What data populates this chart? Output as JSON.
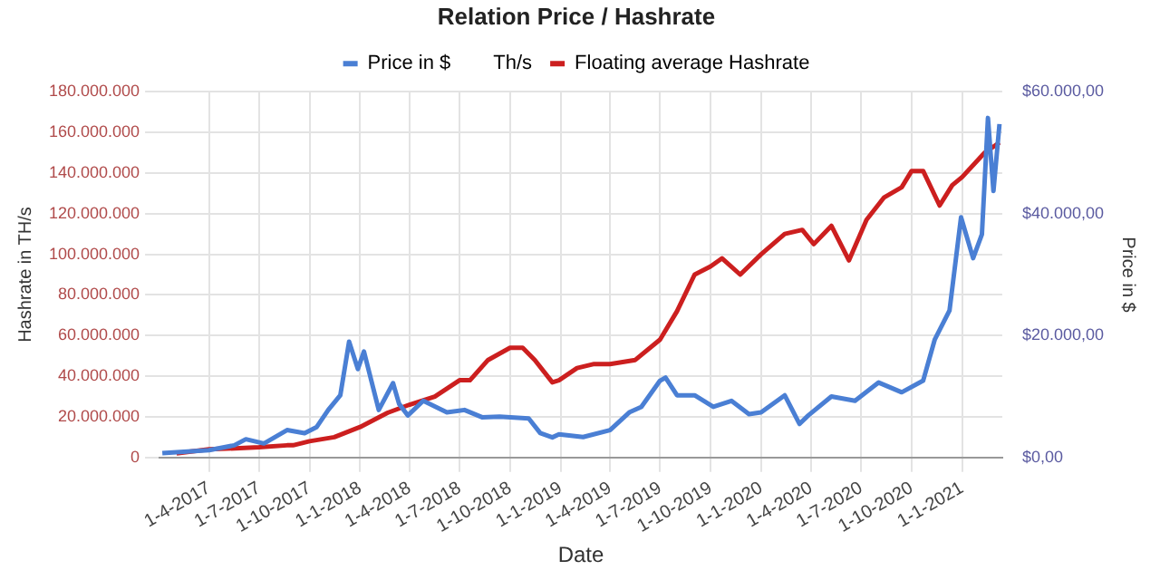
{
  "chart_data": {
    "type": "line",
    "title": "Relation Price / Hashrate",
    "xlabel": "Date",
    "ylabel": "Hashrate in TH/s",
    "y2label": "Price in $",
    "legend": "top",
    "grid": true,
    "marker": "none",
    "line_style": "solid",
    "xlim": [
      "2017-01-01",
      "2021-03-15"
    ],
    "xticks": [
      {
        "value": "2017-04-01",
        "label": "1-4-2017"
      },
      {
        "value": "2017-07-01",
        "label": "1-7-2017"
      },
      {
        "value": "2017-10-01",
        "label": "1-10-2017"
      },
      {
        "value": "2018-01-01",
        "label": "1-1-2018"
      },
      {
        "value": "2018-04-01",
        "label": "1-4-2018"
      },
      {
        "value": "2018-07-01",
        "label": "1-7-2018"
      },
      {
        "value": "2018-10-01",
        "label": "1-10-2018"
      },
      {
        "value": "2019-01-01",
        "label": "1-1-2019"
      },
      {
        "value": "2019-04-01",
        "label": "1-4-2019"
      },
      {
        "value": "2019-07-01",
        "label": "1-7-2019"
      },
      {
        "value": "2019-10-01",
        "label": "1-10-2019"
      },
      {
        "value": "2020-01-01",
        "label": "1-1-2020"
      },
      {
        "value": "2020-04-01",
        "label": "1-4-2020"
      },
      {
        "value": "2020-07-01",
        "label": "1-7-2020"
      },
      {
        "value": "2020-10-01",
        "label": "1-10-2020"
      },
      {
        "value": "2021-01-01",
        "label": "1-1-2021"
      }
    ],
    "ylim": [
      0,
      180000000
    ],
    "yticks": [
      0,
      {
        "value": 20000000,
        "label": "20.000.000"
      },
      {
        "value": 40000000,
        "label": "40.000.000"
      },
      {
        "value": 60000000,
        "label": "60.000.000"
      },
      {
        "value": 80000000,
        "label": "80.000.000"
      },
      {
        "value": 100000000,
        "label": "100.000.000"
      },
      {
        "value": 120000000,
        "label": "120.000.000"
      },
      {
        "value": 140000000,
        "label": "140.000.000"
      },
      {
        "value": 160000000,
        "label": "160.000.000"
      },
      {
        "value": 180000000,
        "label": "180.000.000"
      }
    ],
    "y2lim": [
      0,
      60000
    ],
    "y2ticks": [
      {
        "value": 0,
        "label": "$0,00"
      },
      {
        "value": 20000,
        "label": "$20.000,00"
      },
      {
        "value": 40000,
        "label": "$40.000,00"
      },
      {
        "value": 60000,
        "label": "$60.000,00"
      }
    ],
    "series": [
      {
        "name": "Price in $",
        "color": "#4a7fd4",
        "axis": "y2",
        "x": [
          "2017-01-06",
          "2017-04-01",
          "2017-05-17",
          "2017-06-07",
          "2017-07-10",
          "2017-08-21",
          "2017-09-22",
          "2017-10-14",
          "2017-11-04",
          "2017-11-26",
          "2017-12-12",
          "2017-12-28",
          "2018-01-08",
          "2018-02-04",
          "2018-03-02",
          "2018-03-13",
          "2018-03-29",
          "2018-04-26",
          "2018-06-08",
          "2018-07-10",
          "2018-08-11",
          "2018-09-12",
          "2018-11-04",
          "2018-11-25",
          "2018-12-17",
          "2018-12-29",
          "2019-02-11",
          "2019-04-01",
          "2019-05-06",
          "2019-05-28",
          "2019-07-01",
          "2019-07-11",
          "2019-08-01",
          "2019-09-02",
          "2019-10-06",
          "2019-11-08",
          "2019-12-10",
          "2020-01-01",
          "2020-02-13",
          "2020-03-11",
          "2020-03-27",
          "2020-05-08",
          "2020-06-20",
          "2020-08-02",
          "2020-09-13",
          "2020-10-22",
          "2020-11-12",
          "2020-12-09",
          "2020-12-30",
          "2021-01-21",
          "2021-02-06",
          "2021-02-17",
          "2021-02-27",
          "2021-03-10"
        ],
        "values": [
          700,
          1200,
          2000,
          3000,
          2300,
          4500,
          4000,
          5000,
          7800,
          10200,
          19000,
          14500,
          17400,
          7800,
          12200,
          8800,
          6900,
          9300,
          7400,
          7800,
          6600,
          6700,
          6400,
          4000,
          3300,
          3800,
          3350,
          4500,
          7400,
          8300,
          12600,
          13100,
          10200,
          10200,
          8300,
          9300,
          7100,
          7400,
          10200,
          5500,
          6900,
          10000,
          9300,
          12300,
          10700,
          12600,
          19300,
          24100,
          39400,
          32700,
          36600,
          55700,
          43700,
          54700
        ]
      },
      {
        "name": "Th/s"
      },
      {
        "name": "Floating average Hashrate",
        "color": "#cc1f1f",
        "x": [
          "2017-02-01",
          "2017-04-01",
          "2017-07-01",
          "2017-08-21",
          "2017-09-01",
          "2017-10-01",
          "2017-11-15",
          "2018-01-01",
          "2018-02-20",
          "2018-04-01",
          "2018-05-17",
          "2018-07-01",
          "2018-07-20",
          "2018-08-22",
          "2018-10-01",
          "2018-10-24",
          "2018-11-15",
          "2018-12-17",
          "2018-12-29",
          "2019-01-31",
          "2019-03-03",
          "2019-04-01",
          "2019-05-17",
          "2019-07-01",
          "2019-08-01",
          "2019-09-02",
          "2019-10-01",
          "2019-10-22",
          "2019-11-24",
          "2020-01-01",
          "2020-02-13",
          "2020-03-16",
          "2020-04-06",
          "2020-05-08",
          "2020-06-09",
          "2020-07-11",
          "2020-08-12",
          "2020-09-13",
          "2020-10-01",
          "2020-10-22",
          "2020-11-21",
          "2020-12-14",
          "2021-01-01",
          "2021-02-11",
          "2021-03-10"
        ],
        "values": [
          2000000,
          4000000,
          5000000,
          6000000,
          6000000,
          8000000,
          10000000,
          15000000,
          22000000,
          26000000,
          30000000,
          38000000,
          38000000,
          48000000,
          54000000,
          54000000,
          48000000,
          37000000,
          38000000,
          44000000,
          46000000,
          46000000,
          48000000,
          58000000,
          72000000,
          90000000,
          94000000,
          98000000,
          90000000,
          100000000,
          110000000,
          112000000,
          105000000,
          114000000,
          97000000,
          117000000,
          128000000,
          133000000,
          141000000,
          141000000,
          124000000,
          134000000,
          138000000,
          150000000,
          155000000
        ]
      }
    ]
  }
}
